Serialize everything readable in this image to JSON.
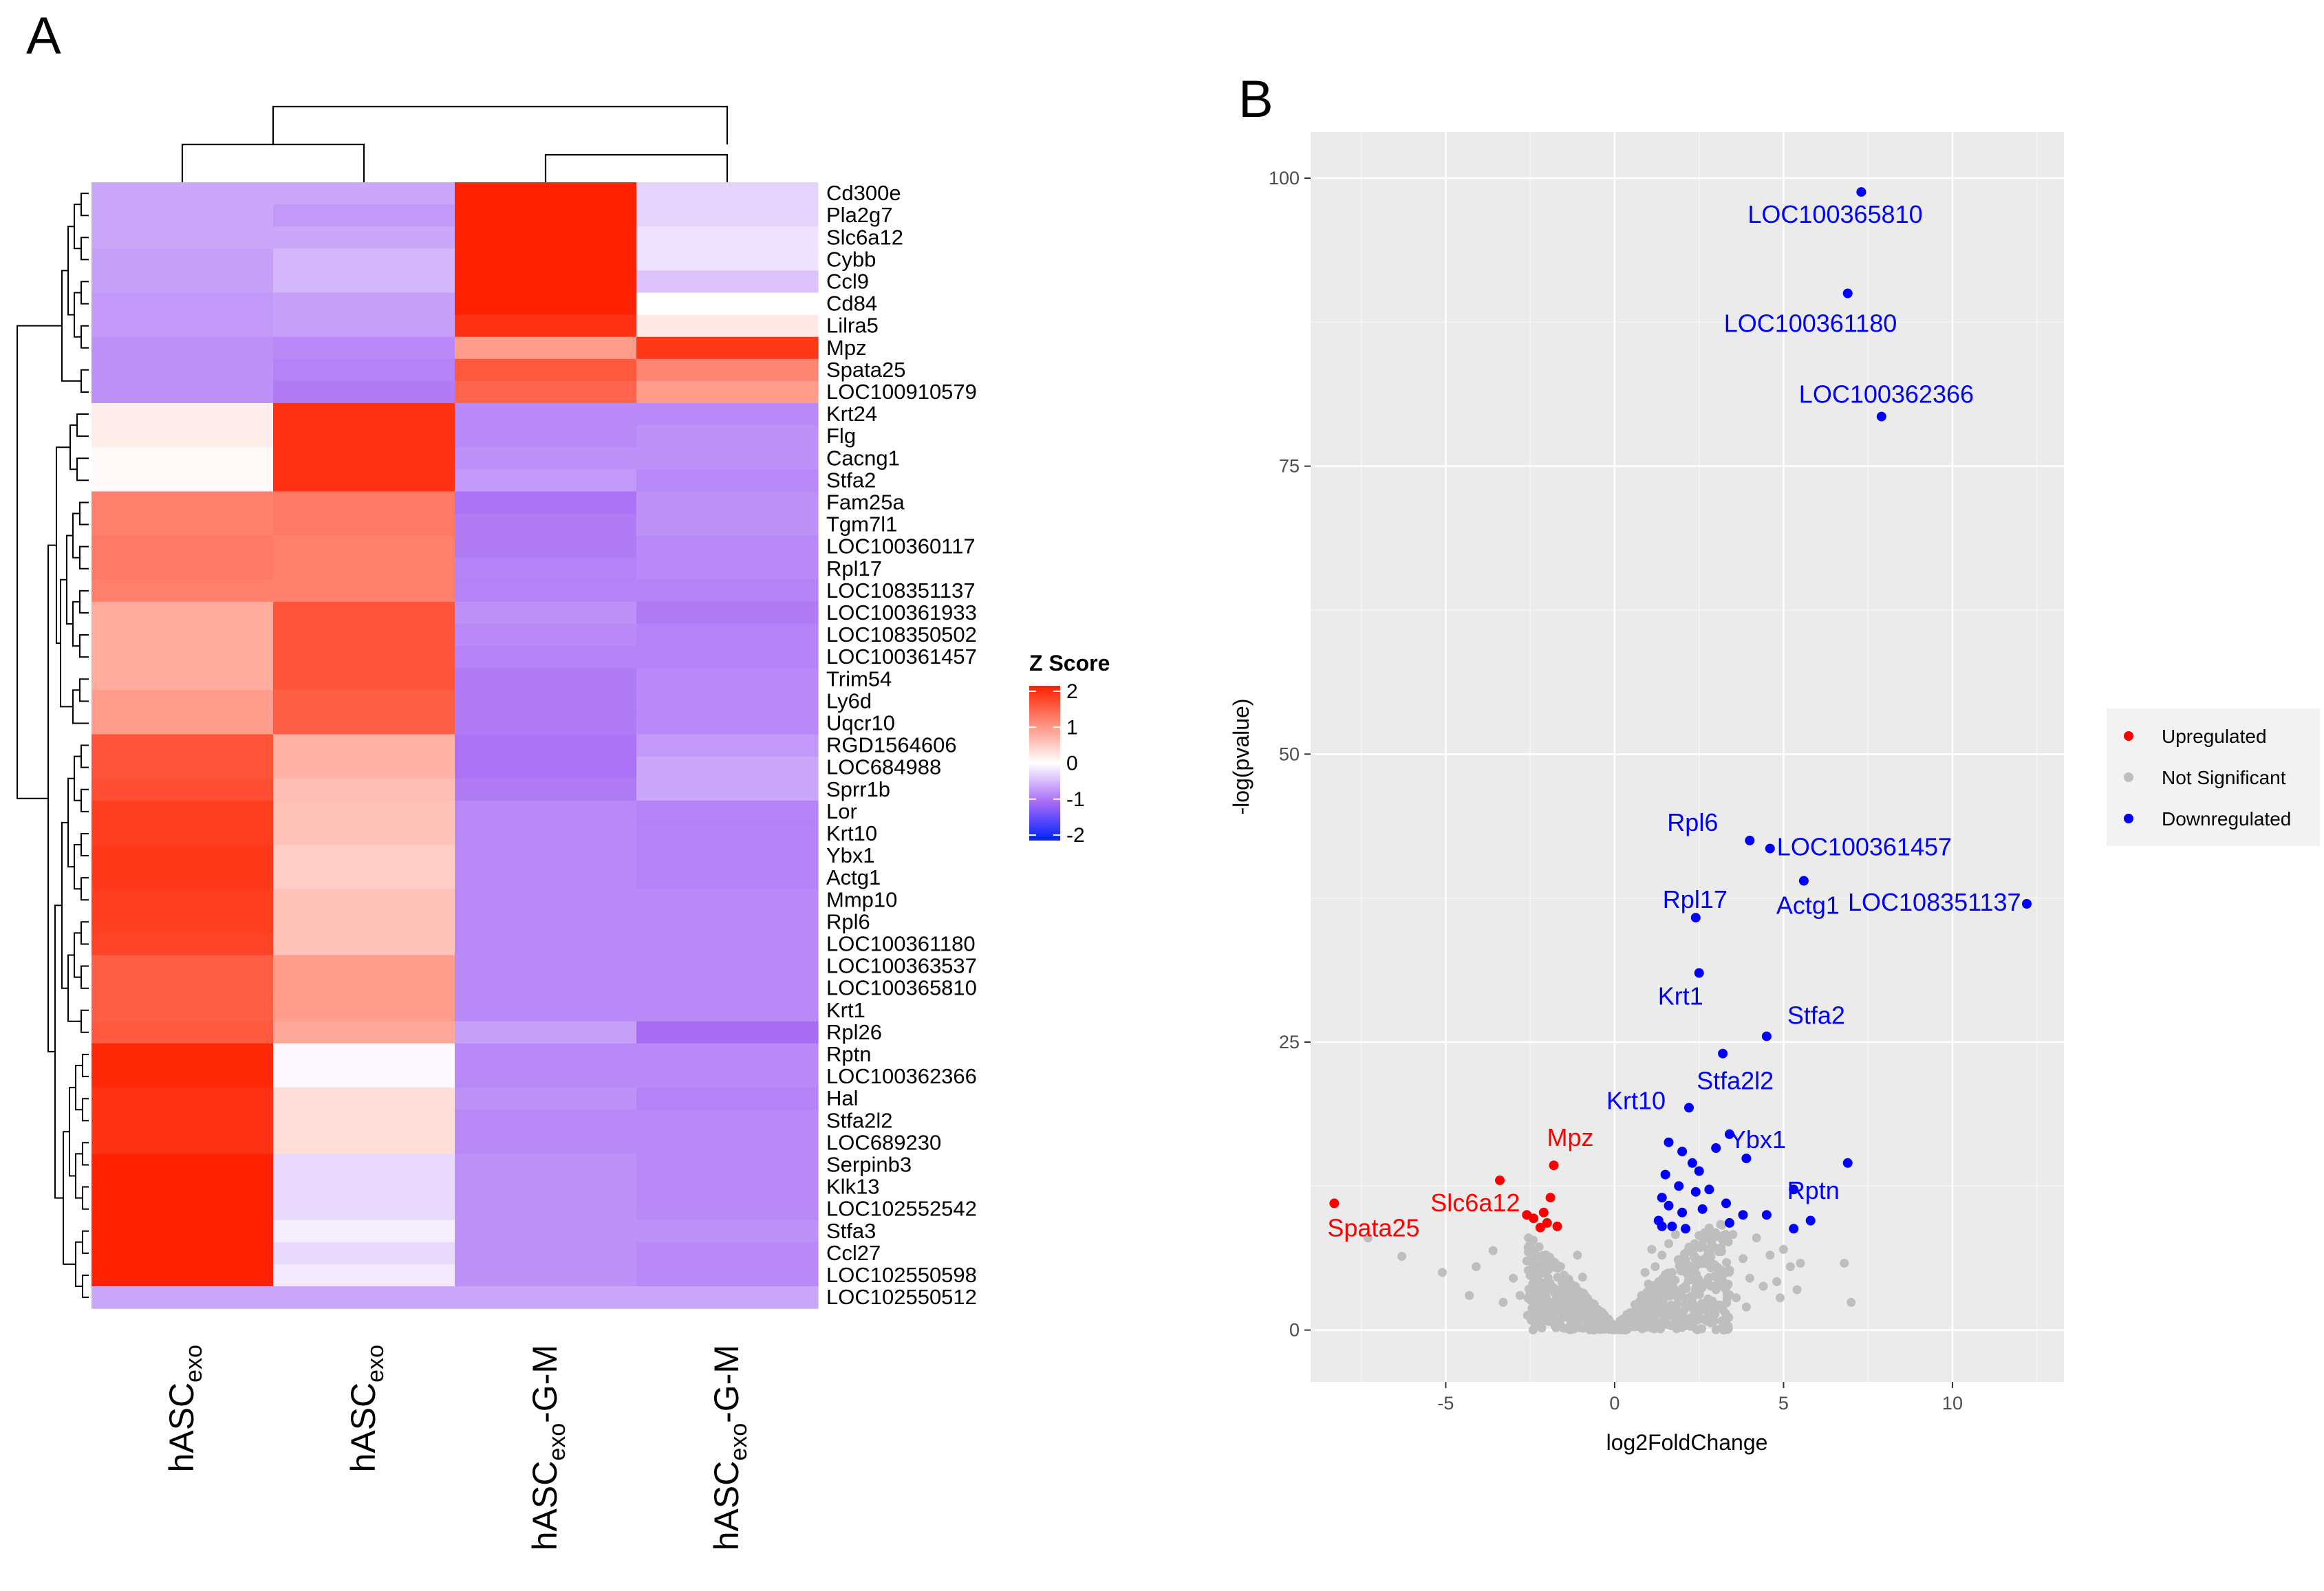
{
  "panel_labels": {
    "a": "A",
    "b": "B"
  },
  "chart_data": [
    {
      "type": "heatmap",
      "panel": "A",
      "columns": [
        {
          "base": "hASC",
          "sub": "exo",
          "suffix": ""
        },
        {
          "base": "hASC",
          "sub": "exo",
          "suffix": ""
        },
        {
          "base": "hASC",
          "sub": "exo",
          "suffix": "-G-M"
        },
        {
          "base": "hASC",
          "sub": "exo",
          "suffix": "-G-M"
        }
      ],
      "rows": [
        "Cd300e",
        "Pla2g7",
        "Slc6a12",
        "Cybb",
        "Ccl9",
        "Cd84",
        "Lilra5",
        "Mpz",
        "Spata25",
        "LOC100910579",
        "Krt24",
        "Flg",
        "Cacng1",
        "Stfa2",
        "Fam25a",
        "Tgm7l1",
        "LOC100360117",
        "Rpl17",
        "LOC108351137",
        "LOC100361933",
        "LOC108350502",
        "LOC100361457",
        "Trim54",
        "Ly6d",
        "Uqcr10",
        "RGD1564606",
        "LOC684988",
        "Sprr1b",
        "Lor",
        "Krt10",
        "Ybx1",
        "Actg1",
        "Mmp10",
        "Rpl6",
        "LOC100361180",
        "LOC100363537",
        "LOC100365810",
        "Krt1",
        "Rpl26",
        "Rptn",
        "LOC100362366",
        "Hal",
        "Stfa2l2",
        "LOC689230",
        "Serpinb3",
        "Klk13",
        "LOC102552542",
        "Stfa3",
        "Ccl27",
        "LOC102550598",
        "LOC102550512"
      ],
      "values": [
        [
          -0.6,
          -0.6,
          2.0,
          -0.3
        ],
        [
          -0.6,
          -0.7,
          2.0,
          -0.3
        ],
        [
          -0.6,
          -0.6,
          2.0,
          -0.2
        ],
        [
          -0.65,
          -0.5,
          2.0,
          -0.2
        ],
        [
          -0.65,
          -0.5,
          2.0,
          -0.4
        ],
        [
          -0.7,
          -0.65,
          2.0,
          0.0
        ],
        [
          -0.7,
          -0.65,
          1.85,
          0.2
        ],
        [
          -0.75,
          -0.8,
          0.9,
          1.8
        ],
        [
          -0.75,
          -0.85,
          1.5,
          1.1
        ],
        [
          -0.75,
          -0.9,
          1.4,
          0.9
        ],
        [
          0.15,
          1.85,
          -0.8,
          -0.8
        ],
        [
          0.15,
          1.85,
          -0.8,
          -0.75
        ],
        [
          0.05,
          1.85,
          -0.75,
          -0.75
        ],
        [
          0.05,
          1.85,
          -0.7,
          -0.8
        ],
        [
          1.15,
          1.2,
          -0.95,
          -0.75
        ],
        [
          1.15,
          1.2,
          -0.9,
          -0.75
        ],
        [
          1.2,
          1.15,
          -0.9,
          -0.8
        ],
        [
          1.2,
          1.15,
          -0.85,
          -0.8
        ],
        [
          1.15,
          1.15,
          -0.85,
          -0.85
        ],
        [
          0.75,
          1.55,
          -0.75,
          -0.9
        ],
        [
          0.75,
          1.55,
          -0.8,
          -0.85
        ],
        [
          0.75,
          1.55,
          -0.85,
          -0.85
        ],
        [
          0.75,
          1.55,
          -0.9,
          -0.8
        ],
        [
          0.9,
          1.45,
          -0.9,
          -0.8
        ],
        [
          0.9,
          1.45,
          -0.9,
          -0.8
        ],
        [
          1.55,
          0.7,
          -0.95,
          -0.7
        ],
        [
          1.55,
          0.7,
          -0.95,
          -0.6
        ],
        [
          1.6,
          0.6,
          -0.9,
          -0.6
        ],
        [
          1.75,
          0.55,
          -0.8,
          -0.85
        ],
        [
          1.75,
          0.55,
          -0.8,
          -0.85
        ],
        [
          1.8,
          0.45,
          -0.8,
          -0.85
        ],
        [
          1.8,
          0.45,
          -0.8,
          -0.85
        ],
        [
          1.75,
          0.55,
          -0.8,
          -0.8
        ],
        [
          1.75,
          0.55,
          -0.8,
          -0.8
        ],
        [
          1.7,
          0.55,
          -0.8,
          -0.8
        ],
        [
          1.45,
          0.9,
          -0.8,
          -0.8
        ],
        [
          1.45,
          0.9,
          -0.8,
          -0.8
        ],
        [
          1.45,
          0.9,
          -0.8,
          -0.8
        ],
        [
          1.5,
          0.8,
          -0.65,
          -1.0
        ],
        [
          1.95,
          -0.05,
          -0.8,
          -0.8
        ],
        [
          1.95,
          -0.05,
          -0.8,
          -0.8
        ],
        [
          1.85,
          0.3,
          -0.75,
          -0.85
        ],
        [
          1.85,
          0.3,
          -0.8,
          -0.8
        ],
        [
          1.85,
          0.3,
          -0.8,
          -0.8
        ],
        [
          2.0,
          -0.25,
          -0.75,
          -0.8
        ],
        [
          2.0,
          -0.25,
          -0.75,
          -0.8
        ],
        [
          2.0,
          -0.25,
          -0.75,
          -0.8
        ],
        [
          2.0,
          -0.1,
          -0.75,
          -0.75
        ],
        [
          2.0,
          -0.25,
          -0.75,
          -0.8
        ],
        [
          2.0,
          -0.15,
          -0.75,
          -0.8
        ],
        [
          -0.6,
          -0.6,
          -0.6,
          -0.6
        ]
      ],
      "colorbar": {
        "title": "Z Score",
        "ticks": [
          "2",
          "1",
          "0",
          "-1",
          "-2"
        ],
        "range": [
          -2,
          2
        ]
      },
      "colors": {
        "high": "#ff2200",
        "mid": "#ffffff",
        "low": "#0022ff",
        "mid_low": "#a86cf5"
      }
    },
    {
      "type": "scatter",
      "panel": "B",
      "xlabel": "log2FoldChange",
      "ylabel": "-log(pvalue)",
      "xlim": [
        -9.0,
        13.3
      ],
      "ylim": [
        -4.5,
        104
      ],
      "xticks": [
        "-5",
        "0",
        "5",
        "10"
      ],
      "yticks": [
        "0",
        "25",
        "50",
        "75",
        "100"
      ],
      "xtick_values": [
        -5,
        0,
        5,
        10
      ],
      "ytick_values": [
        0,
        25,
        50,
        75,
        100
      ],
      "legend": [
        {
          "label": "Upregulated",
          "color": "#ff0000"
        },
        {
          "label": "Not Significant",
          "color": "#bebebe"
        },
        {
          "label": "Downregulated",
          "color": "#0000ff"
        }
      ],
      "labeled_points": [
        {
          "x": 7.3,
          "y": 98.8,
          "label": "LOC100365810",
          "group": "down"
        },
        {
          "x": 6.9,
          "y": 90.0,
          "label": "LOC100361180",
          "group": "down"
        },
        {
          "x": 7.9,
          "y": 79.3,
          "label": "LOC100362366",
          "group": "down"
        },
        {
          "x": 4.0,
          "y": 42.5,
          "label": "Rpl6",
          "group": "down"
        },
        {
          "x": 4.6,
          "y": 41.8,
          "label": "LOC100361457",
          "group": "down"
        },
        {
          "x": 5.6,
          "y": 39.0,
          "label": "Actg1",
          "group": "down"
        },
        {
          "x": 12.2,
          "y": 37.0,
          "label": "LOC108351137",
          "group": "down"
        },
        {
          "x": 2.4,
          "y": 35.8,
          "label": "Rpl17",
          "group": "down"
        },
        {
          "x": 2.5,
          "y": 31.0,
          "label": "Krt1",
          "group": "down"
        },
        {
          "x": 4.5,
          "y": 25.5,
          "label": "Stfa2",
          "group": "down"
        },
        {
          "x": 3.2,
          "y": 24.0,
          "label": "Stfa2l2",
          "group": "down"
        },
        {
          "x": 2.2,
          "y": 19.3,
          "label": "Krt10",
          "group": "down"
        },
        {
          "x": 3.4,
          "y": 17.0,
          "label": "Ybx1",
          "group": "down"
        },
        {
          "x": 6.9,
          "y": 14.5,
          "label": "Rptn",
          "group": "down"
        },
        {
          "x": -1.8,
          "y": 14.3,
          "label": "Mpz",
          "group": "up"
        },
        {
          "x": -2.6,
          "y": 10.0,
          "label": "Slc6a12",
          "group": "up"
        },
        {
          "x": -8.3,
          "y": 11.0,
          "label": "Spata25",
          "group": "up"
        }
      ],
      "down_points": [
        [
          1.6,
          16.3
        ],
        [
          2.0,
          15.5
        ],
        [
          2.3,
          14.5
        ],
        [
          2.5,
          13.8
        ],
        [
          3.0,
          15.8
        ],
        [
          3.9,
          14.9
        ],
        [
          1.5,
          13.5
        ],
        [
          1.9,
          12.5
        ],
        [
          2.4,
          12.0
        ],
        [
          2.8,
          12.2
        ],
        [
          3.3,
          11.0
        ],
        [
          1.4,
          11.5
        ],
        [
          1.6,
          10.8
        ],
        [
          2.0,
          10.2
        ],
        [
          2.6,
          10.5
        ],
        [
          3.8,
          10.0
        ],
        [
          4.5,
          10.0
        ],
        [
          1.3,
          9.5
        ],
        [
          1.7,
          9.0
        ],
        [
          2.1,
          8.8
        ],
        [
          3.4,
          9.3
        ],
        [
          5.3,
          12.2
        ],
        [
          5.3,
          8.8
        ],
        [
          5.8,
          9.5
        ],
        [
          1.4,
          9.0
        ]
      ],
      "up_points": [
        [
          -3.4,
          13.0
        ],
        [
          -1.9,
          11.5
        ],
        [
          -2.1,
          10.2
        ],
        [
          -2.4,
          9.7
        ],
        [
          -2.0,
          9.3
        ],
        [
          -1.7,
          9.0
        ],
        [
          -2.2,
          8.9
        ]
      ],
      "ns_points": [
        [
          -7.3,
          8.0
        ],
        [
          -6.3,
          6.4
        ],
        [
          -5.1,
          5.0
        ],
        [
          -4.1,
          5.5
        ],
        [
          -3.6,
          6.9
        ],
        [
          -3.0,
          4.5
        ],
        [
          -2.6,
          6.0
        ],
        [
          -2.3,
          4.2
        ],
        [
          -2.1,
          6.2
        ],
        [
          -1.8,
          3.5
        ],
        [
          -1.6,
          5.5
        ],
        [
          -1.5,
          2.5
        ],
        [
          -1.3,
          4.0
        ],
        [
          -1.2,
          2.0
        ],
        [
          -1.0,
          3.2
        ],
        [
          -0.9,
          1.5
        ],
        [
          -0.8,
          2.5
        ],
        [
          -0.7,
          1.0
        ],
        [
          -0.6,
          1.8
        ],
        [
          -0.5,
          0.7
        ],
        [
          -0.4,
          1.2
        ],
        [
          -0.3,
          0.4
        ],
        [
          -0.2,
          0.8
        ],
        [
          -0.1,
          0.2
        ],
        [
          0.0,
          0.1
        ],
        [
          0.1,
          0.3
        ],
        [
          0.2,
          0.7
        ],
        [
          0.3,
          0.5
        ],
        [
          0.4,
          1.4
        ],
        [
          0.5,
          1.0
        ],
        [
          0.6,
          2.2
        ],
        [
          0.7,
          1.5
        ],
        [
          0.8,
          3.0
        ],
        [
          0.9,
          2.2
        ],
        [
          1.0,
          4.0
        ],
        [
          1.1,
          3.0
        ],
        [
          1.2,
          5.5
        ],
        [
          1.3,
          4.2
        ],
        [
          1.4,
          6.5
        ],
        [
          1.5,
          4.8
        ],
        [
          1.6,
          7.5
        ],
        [
          1.7,
          5.0
        ],
        [
          1.8,
          8.3
        ],
        [
          1.9,
          6.0
        ],
        [
          2.0,
          3.6
        ],
        [
          2.2,
          7.2
        ],
        [
          2.4,
          5.5
        ],
        [
          2.6,
          4.0
        ],
        [
          2.8,
          6.8
        ],
        [
          3.0,
          3.5
        ],
        [
          3.2,
          7.8
        ],
        [
          3.4,
          5.2
        ],
        [
          3.6,
          2.8
        ],
        [
          3.8,
          6.2
        ],
        [
          4.0,
          4.5
        ],
        [
          4.2,
          8.0
        ],
        [
          4.4,
          3.8
        ],
        [
          4.6,
          6.5
        ],
        [
          4.8,
          4.2
        ],
        [
          5.0,
          7.0
        ],
        [
          5.2,
          5.5
        ],
        [
          5.5,
          5.8
        ],
        [
          5.4,
          3.5
        ],
        [
          6.8,
          5.8
        ],
        [
          7.0,
          2.4
        ],
        [
          -2.8,
          3.0
        ],
        [
          -3.3,
          2.4
        ],
        [
          -4.3,
          3.0
        ],
        [
          -1.1,
          6.5
        ],
        [
          0.9,
          5.0
        ],
        [
          1.1,
          7.0
        ],
        [
          1.3,
          2.8
        ],
        [
          2.1,
          2.2
        ],
        [
          2.5,
          8.2
        ],
        [
          2.9,
          2.5
        ],
        [
          3.5,
          8.3
        ],
        [
          3.9,
          2.0
        ],
        [
          4.9,
          2.8
        ],
        [
          -0.95,
          4.6
        ],
        [
          1.55,
          3.3
        ]
      ]
    }
  ]
}
